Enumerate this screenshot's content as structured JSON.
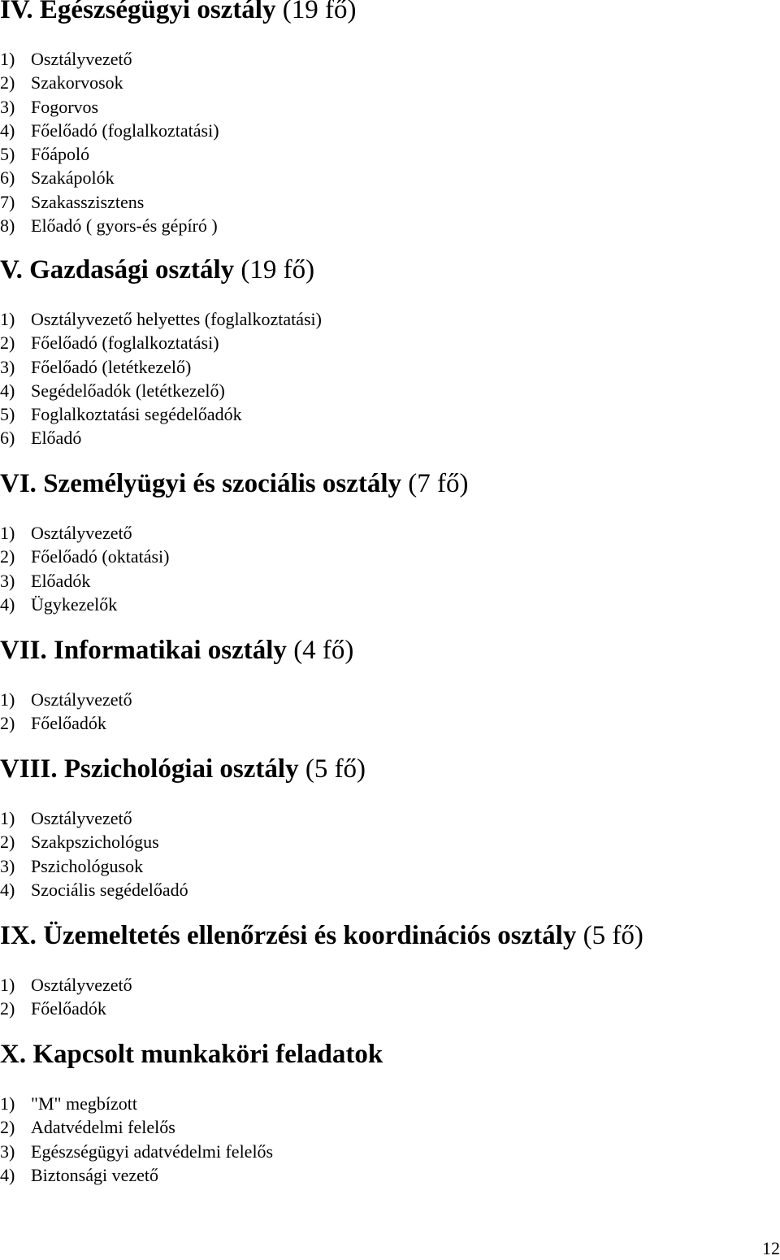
{
  "sections": [
    {
      "number": "IV.",
      "title": "Egészségügyi osztály",
      "count": "(19 fő)",
      "items": [
        {
          "marker": "1)",
          "text": "Osztályvezető"
        },
        {
          "marker": "2)",
          "text": "Szakorvosok"
        },
        {
          "marker": "3)",
          "text": "Fogorvos"
        },
        {
          "marker": "4)",
          "text": "Főelőadó (foglalkoztatási)"
        },
        {
          "marker": "5)",
          "text": "Főápoló"
        },
        {
          "marker": "6)",
          "text": "Szakápolók"
        },
        {
          "marker": "7)",
          "text": "Szakasszisztens"
        },
        {
          "marker": "8)",
          "text": "Előadó ( gyors-és gépíró )"
        }
      ]
    },
    {
      "number": "V.",
      "title": "Gazdasági osztály",
      "count": "(19 fő)",
      "items": [
        {
          "marker": "1)",
          "text": "Osztályvezető helyettes (foglalkoztatási)"
        },
        {
          "marker": "2)",
          "text": "Főelőadó (foglalkoztatási)"
        },
        {
          "marker": "3)",
          "text": "Főelőadó (letétkezelő)"
        },
        {
          "marker": "4)",
          "text": "Segédelőadók (letétkezelő)"
        },
        {
          "marker": "5)",
          "text": "Foglalkoztatási segédelőadók"
        },
        {
          "marker": "6)",
          "text": "Előadó"
        }
      ]
    },
    {
      "number": "VI.",
      "title": "Személyügyi és szociális osztály",
      "count": "(7 fő)",
      "items": [
        {
          "marker": "1)",
          "text": "Osztályvezető"
        },
        {
          "marker": "2)",
          "text": "Főelőadó (oktatási)"
        },
        {
          "marker": "3)",
          "text": "Előadók"
        },
        {
          "marker": "4)",
          "text": "Ügykezelők"
        }
      ]
    },
    {
      "number": "VII.",
      "title": "Informatikai osztály",
      "count": "(4 fő)",
      "items": [
        {
          "marker": "1)",
          "text": "Osztályvezető"
        },
        {
          "marker": "2)",
          "text": "Főelőadók"
        }
      ]
    },
    {
      "number": "VIII.",
      "title": "Pszichológiai osztály",
      "count": "(5 fő)",
      "items": [
        {
          "marker": "1)",
          "text": "Osztályvezető"
        },
        {
          "marker": "2)",
          "text": "Szakpszichológus"
        },
        {
          "marker": "3)",
          "text": "Pszichológusok"
        },
        {
          "marker": "4)",
          "text": "Szociális segédelőadó"
        }
      ]
    },
    {
      "number": "IX.",
      "title": "Üzemeltetés ellenőrzési és koordinációs osztály",
      "count": "(5 fő)",
      "items": [
        {
          "marker": "1)",
          "text": "Osztályvezető"
        },
        {
          "marker": "2)",
          "text": "Főelőadók"
        }
      ]
    },
    {
      "number": "X.",
      "title": "Kapcsolt munkaköri feladatok",
      "count": "",
      "items": [
        {
          "marker": "1)",
          "text": "\"M\" megbízott"
        },
        {
          "marker": "2)",
          "text": "Adatvédelmi felelős"
        },
        {
          "marker": "3)",
          "text": "Egészségügyi adatvédelmi felelős"
        },
        {
          "marker": "4)",
          "text": "Biztonsági vezető"
        }
      ]
    }
  ],
  "page_number": "12"
}
